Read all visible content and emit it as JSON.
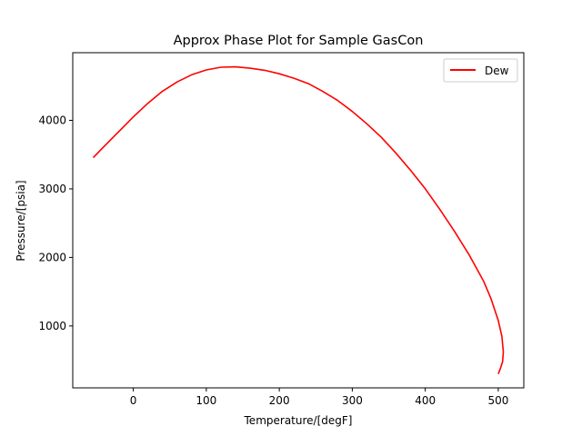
{
  "chart_data": {
    "type": "line",
    "title": "Approx Phase Plot for Sample GasCon",
    "xlabel": "Temperature/[degF]",
    "ylabel": "Pressure/[psia]",
    "xlim": [
      -83,
      535
    ],
    "ylim": [
      97,
      4987
    ],
    "xticks": [
      0,
      100,
      200,
      300,
      400,
      500
    ],
    "yticks": [
      1000,
      2000,
      3000,
      4000
    ],
    "grid": false,
    "legend_position": "top-right",
    "series": [
      {
        "name": "Dew",
        "color": "#ff0000",
        "x": [
          -55,
          -40,
          -20,
          0,
          20,
          40,
          60,
          80,
          100,
          120,
          140,
          160,
          180,
          200,
          220,
          240,
          260,
          280,
          300,
          320,
          340,
          360,
          380,
          400,
          420,
          440,
          460,
          480,
          490,
          500,
          505,
          507,
          506,
          503,
          500
        ],
        "y": [
          3455,
          3620,
          3835,
          4050,
          4250,
          4425,
          4560,
          4665,
          4735,
          4775,
          4780,
          4760,
          4730,
          4680,
          4615,
          4535,
          4420,
          4290,
          4130,
          3950,
          3750,
          3520,
          3270,
          3000,
          2700,
          2380,
          2040,
          1650,
          1400,
          1080,
          850,
          620,
          480,
          380,
          300
        ]
      }
    ]
  }
}
